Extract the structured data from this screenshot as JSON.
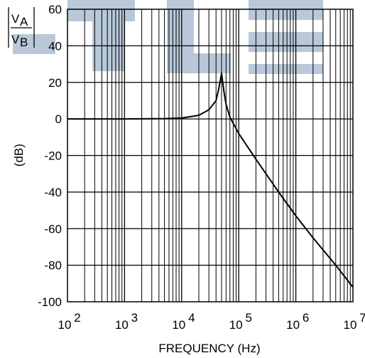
{
  "chart_data": {
    "type": "line",
    "title": "",
    "xlabel": "FREQUENCY (Hz)",
    "ylabel": "(dB)",
    "ylabel_ratio": {
      "numerator": "V",
      "numerator_sub": "A",
      "denominator": "V",
      "denominator_sub": "B"
    },
    "x_scale": "log",
    "xlim": [
      100,
      10000000
    ],
    "ylim": [
      -100,
      60
    ],
    "x_ticks": [
      {
        "value": 100,
        "base": "10",
        "exp": "2"
      },
      {
        "value": 1000,
        "base": "10",
        "exp": "3"
      },
      {
        "value": 10000,
        "base": "10",
        "exp": "4"
      },
      {
        "value": 100000,
        "base": "10",
        "exp": "5"
      },
      {
        "value": 1000000,
        "base": "10",
        "exp": "6"
      },
      {
        "value": 10000000,
        "base": "10",
        "exp": "7"
      }
    ],
    "y_ticks": [
      -100,
      -80,
      -60,
      -40,
      -20,
      0,
      20,
      40,
      60
    ],
    "y_tick_labels": [
      "-100",
      "-80",
      "-60",
      "-40",
      "-20",
      "0",
      "20",
      "40",
      "60"
    ],
    "grid": "minor-log-x, major-y",
    "series": [
      {
        "color": "#000000",
        "x": [
          100,
          1000,
          5000,
          10000,
          20000,
          30000,
          40000,
          45000,
          50000,
          55000,
          60000,
          70000,
          100000,
          200000,
          500000,
          1000000,
          2000000,
          5000000,
          10000000
        ],
        "y": [
          0,
          0,
          0.2,
          0.5,
          2,
          5,
          10,
          17,
          25,
          15,
          8,
          1,
          -8,
          -22,
          -40,
          -53,
          -65,
          -80,
          -92
        ]
      }
    ],
    "watermark_color": "#b8c8d8"
  }
}
